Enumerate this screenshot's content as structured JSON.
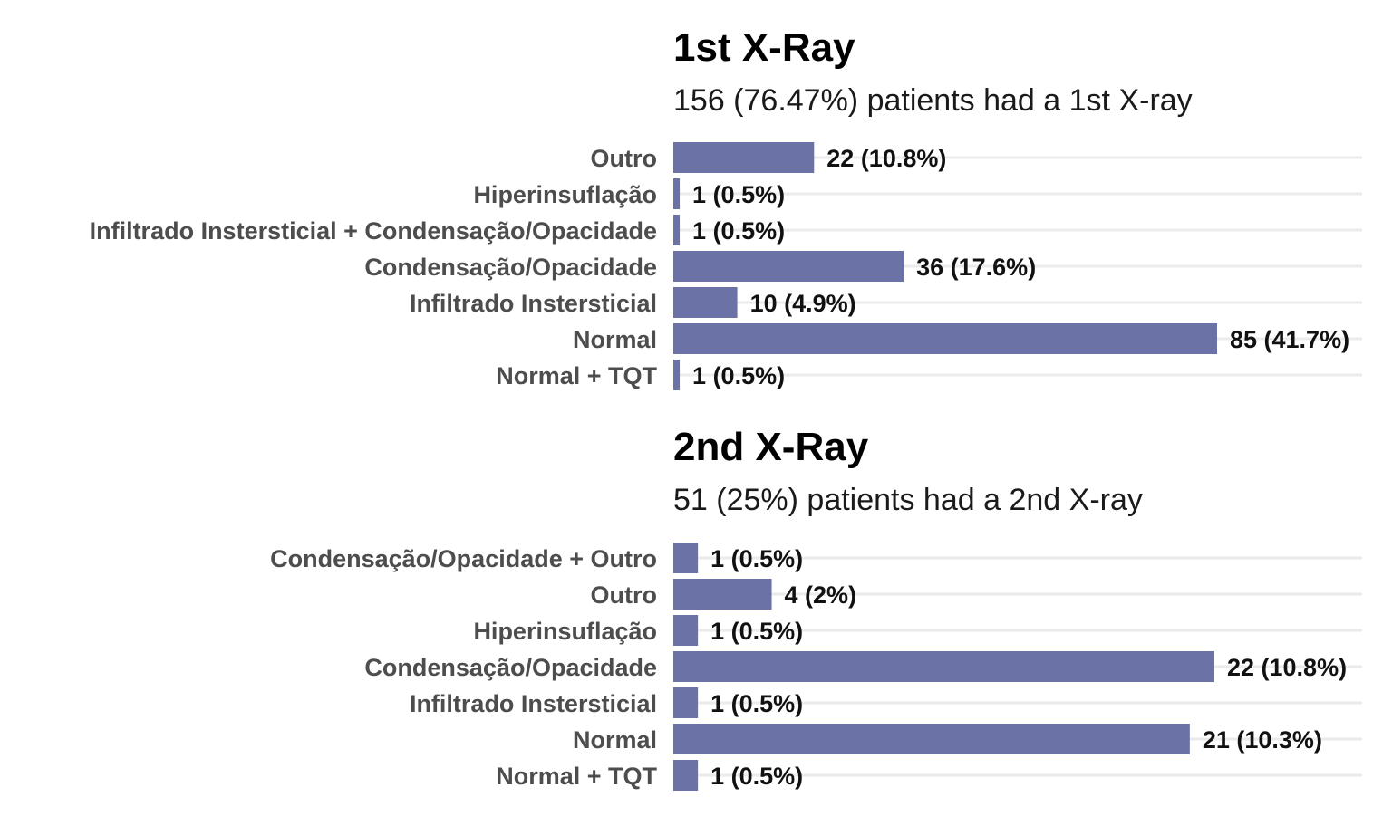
{
  "colors": {
    "bar": "#6b73a6",
    "grid": "#ebebeb",
    "title": "#000000",
    "category_label": "#4d4d4d",
    "value_label": "#111111"
  },
  "chart_data": [
    {
      "type": "bar",
      "orientation": "horizontal",
      "title": "1st X-Ray",
      "subtitle": "156 (76.47%) patients had a 1st X-ray",
      "categories": [
        "Outro",
        "Hiperinsuflação",
        "Infiltrado Instersticial + Condensação/Opacidade",
        "Condensação/Opacidade",
        "Infiltrado Instersticial",
        "Normal",
        "Normal + TQT"
      ],
      "values": [
        22,
        1,
        1,
        36,
        10,
        85,
        1
      ],
      "labels": [
        "22 (10.8%)",
        "1 (0.5%)",
        "1 (0.5%)",
        "36 (17.6%)",
        "10 (4.9%)",
        "85 (41.7%)",
        "1 (0.5%)"
      ],
      "xlim": [
        0,
        85
      ],
      "grid": true
    },
    {
      "type": "bar",
      "orientation": "horizontal",
      "title": "2nd X-Ray",
      "subtitle": "51 (25%) patients had a 2nd X-ray",
      "categories": [
        "Condensação/Opacidade + Outro",
        "Outro",
        "Hiperinsuflação",
        "Condensação/Opacidade",
        "Infiltrado Instersticial",
        "Normal",
        "Normal + TQT"
      ],
      "values": [
        1,
        4,
        1,
        22,
        1,
        21,
        1
      ],
      "labels": [
        "1 (0.5%)",
        "4 (2%)",
        "1 (0.5%)",
        "22 (10.8%)",
        "1 (0.5%)",
        "21 (10.3%)",
        "1 (0.5%)"
      ],
      "xlim": [
        0,
        22
      ],
      "grid": true
    }
  ]
}
